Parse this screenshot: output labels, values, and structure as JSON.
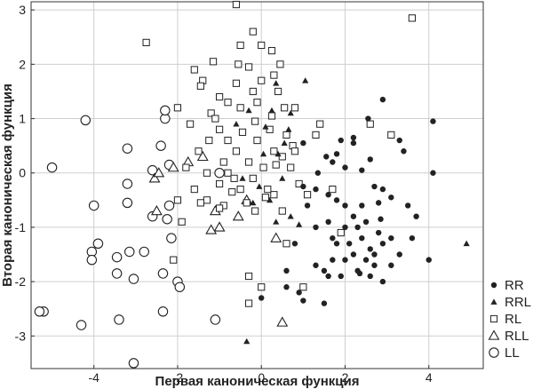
{
  "chart_data": {
    "type": "scatter",
    "xlabel": "Первая каноническая функция",
    "ylabel": "Вторая каноническая функция",
    "xlim": [
      -5.5,
      5.3
    ],
    "ylim": [
      -3.6,
      3.15
    ],
    "xticks": [
      -4,
      -2,
      0,
      2,
      4
    ],
    "yticks": [
      -3,
      -2,
      -1,
      0,
      1,
      2,
      3
    ],
    "grid": true,
    "legend_position": "bottom-right",
    "series": [
      {
        "name": "RR",
        "marker": "filled-circle",
        "points": [
          [
            4.1,
            0.95
          ],
          [
            3.3,
            0.6
          ],
          [
            2.2,
            0.65
          ],
          [
            2.6,
            0.25
          ],
          [
            2.55,
            1.0
          ],
          [
            3.4,
            0.4
          ],
          [
            2.9,
            1.35
          ],
          [
            4.1,
            0.0
          ],
          [
            2.2,
            0.55
          ],
          [
            1.0,
            0.55
          ],
          [
            1.9,
            0.6
          ],
          [
            1.8,
            0.35
          ],
          [
            1.7,
            0.2
          ],
          [
            2.0,
            0.1
          ],
          [
            2.4,
            0.05
          ],
          [
            2.9,
            -0.3
          ],
          [
            3.1,
            -0.45
          ],
          [
            3.5,
            -0.6
          ],
          [
            1.3,
            -0.3
          ],
          [
            1.6,
            -0.4
          ],
          [
            1.8,
            -0.5
          ],
          [
            2.0,
            -0.6
          ],
          [
            2.2,
            -0.8
          ],
          [
            2.5,
            -0.9
          ],
          [
            2.8,
            -0.55
          ],
          [
            2.3,
            -1.0
          ],
          [
            2.0,
            -1.0
          ],
          [
            1.6,
            -0.9
          ],
          [
            1.7,
            -1.2
          ],
          [
            1.3,
            -1.0
          ],
          [
            1.8,
            -1.3
          ],
          [
            2.1,
            -1.3
          ],
          [
            2.4,
            -1.2
          ],
          [
            2.6,
            -1.4
          ],
          [
            2.9,
            -1.3
          ],
          [
            3.1,
            -1.2
          ],
          [
            2.8,
            -1.1
          ],
          [
            3.3,
            -1.5
          ],
          [
            3.1,
            -1.7
          ],
          [
            2.7,
            -1.7
          ],
          [
            2.5,
            -1.6
          ],
          [
            2.2,
            -1.5
          ],
          [
            2.0,
            -1.6
          ],
          [
            1.7,
            -1.6
          ],
          [
            1.5,
            -1.8
          ],
          [
            1.6,
            -1.9
          ],
          [
            1.9,
            -1.9
          ],
          [
            2.3,
            -1.8
          ],
          [
            2.6,
            -1.9
          ],
          [
            2.9,
            -2.0
          ],
          [
            3.6,
            -1.2
          ],
          [
            3.7,
            -0.8
          ],
          [
            4.0,
            -1.6
          ],
          [
            2.4,
            -0.6
          ],
          [
            2.7,
            -0.25
          ],
          [
            1.1,
            -0.6
          ],
          [
            0.8,
            -1.3
          ],
          [
            0.6,
            -1.8
          ],
          [
            1.3,
            -1.7
          ],
          [
            0.9,
            -2.2
          ],
          [
            0.6,
            -2.1
          ],
          [
            0.0,
            -2.3
          ],
          [
            1.0,
            -2.35
          ],
          [
            1.5,
            -2.4
          ],
          [
            2.7,
            -1.5
          ],
          [
            1.35,
            0.0
          ],
          [
            1.55,
            0.3
          ],
          [
            2.35,
            -1.85
          ],
          [
            1.0,
            -0.25
          ],
          [
            2.85,
            -0.85
          ]
        ]
      },
      {
        "name": "RRL",
        "marker": "filled-triangle",
        "points": [
          [
            1.05,
            1.7
          ],
          [
            4.9,
            -1.3
          ],
          [
            -0.35,
            -3.1
          ],
          [
            0.5,
            -0.1
          ],
          [
            0.1,
            0.85
          ],
          [
            0.4,
            0.35
          ],
          [
            -0.2,
            -0.55
          ],
          [
            0.7,
            -0.8
          ],
          [
            -0.3,
            1.15
          ],
          [
            0.2,
            -0.5
          ],
          [
            -0.6,
            0.9
          ],
          [
            0.05,
            0.35
          ],
          [
            0.9,
            -0.95
          ],
          [
            0.55,
            0.55
          ],
          [
            0.35,
            -0.9
          ],
          [
            0.35,
            1.65
          ],
          [
            -0.05,
            -0.25
          ],
          [
            0.65,
            0.8
          ],
          [
            -0.45,
            -0.1
          ],
          [
            0.25,
            1.15
          ],
          [
            0.7,
            1.1
          ]
        ]
      },
      {
        "name": "RL",
        "marker": "open-square",
        "points": [
          [
            -0.6,
            3.1
          ],
          [
            3.6,
            2.85
          ],
          [
            -2.75,
            2.4
          ],
          [
            -0.2,
            2.6
          ],
          [
            0.0,
            2.35
          ],
          [
            -0.5,
            2.35
          ],
          [
            -1.6,
            1.9
          ],
          [
            -0.3,
            1.95
          ],
          [
            0.3,
            1.8
          ],
          [
            -1.4,
            1.7
          ],
          [
            -1.45,
            1.6
          ],
          [
            -1.0,
            1.4
          ],
          [
            -0.5,
            1.2
          ],
          [
            -2.0,
            1.2
          ],
          [
            -1.7,
            0.9
          ],
          [
            0.0,
            1.7
          ],
          [
            -0.2,
            1.5
          ],
          [
            0.4,
            1.5
          ],
          [
            0.8,
            1.2
          ],
          [
            -1.2,
            1.1
          ],
          [
            -1.0,
            0.8
          ],
          [
            -0.8,
            0.6
          ],
          [
            -0.6,
            0.4
          ],
          [
            -0.3,
            0.2
          ],
          [
            -0.1,
            0.6
          ],
          [
            0.2,
            0.8
          ],
          [
            0.5,
            0.3
          ],
          [
            0.7,
            0.1
          ],
          [
            0.9,
            -0.2
          ],
          [
            -1.5,
            0.4
          ],
          [
            -1.8,
            0.1
          ],
          [
            -2.0,
            -0.5
          ],
          [
            -1.6,
            -0.3
          ],
          [
            -1.3,
            -0.5
          ],
          [
            -1.0,
            -0.2
          ],
          [
            -0.8,
            0.0
          ],
          [
            -0.5,
            -0.3
          ],
          [
            -0.2,
            -0.1
          ],
          [
            0.3,
            -0.4
          ],
          [
            0.5,
            -0.7
          ],
          [
            1.3,
            0.7
          ],
          [
            1.7,
            -0.3
          ],
          [
            1.9,
            -1.1
          ],
          [
            -1.9,
            -0.9
          ],
          [
            -2.1,
            -1.6
          ],
          [
            -0.3,
            -1.9
          ],
          [
            0.0,
            -2.1
          ],
          [
            1.0,
            -2.1
          ],
          [
            -0.3,
            -2.4
          ],
          [
            0.6,
            -1.3
          ],
          [
            2.6,
            0.9
          ],
          [
            3.1,
            0.7
          ],
          [
            1.4,
            0.9
          ],
          [
            -0.9,
            -0.6
          ],
          [
            -1.3,
            0.0
          ],
          [
            0.25,
            1.05
          ],
          [
            -0.15,
            0.95
          ],
          [
            -0.6,
            1.65
          ],
          [
            0.6,
            0.7
          ],
          [
            -1.1,
            1.0
          ],
          [
            -0.9,
            0.2
          ],
          [
            -0.45,
            0.75
          ],
          [
            0.05,
            0.1
          ],
          [
            0.3,
            0.4
          ],
          [
            -0.7,
            -0.35
          ],
          [
            -0.35,
            -0.55
          ],
          [
            0.1,
            -0.45
          ],
          [
            -1.25,
            0.6
          ],
          [
            -1.45,
            -0.55
          ],
          [
            0.75,
            0.5
          ],
          [
            1.1,
            -0.4
          ],
          [
            -0.1,
            1.3
          ],
          [
            -0.55,
            2.0
          ],
          [
            0.45,
            2.0
          ],
          [
            -1.15,
            2.05
          ],
          [
            0.25,
            2.25
          ],
          [
            -0.8,
            1.3
          ],
          [
            0.15,
            -0.3
          ],
          [
            -0.65,
            -0.1
          ],
          [
            0.8,
            0.4
          ],
          [
            -1.0,
            -0.65
          ],
          [
            0.35,
            0.15
          ],
          [
            -0.15,
            -0.7
          ],
          [
            0.55,
            1.2
          ]
        ]
      },
      {
        "name": "RLL",
        "marker": "open-triangle",
        "points": [
          [
            -2.55,
            -0.1
          ],
          [
            -2.5,
            -0.7
          ],
          [
            -2.1,
            0.1
          ],
          [
            -1.4,
            0.3
          ],
          [
            -1.1,
            -0.7
          ],
          [
            -1.0,
            -1.0
          ],
          [
            -0.55,
            -0.8
          ],
          [
            -1.75,
            0.2
          ],
          [
            -1.2,
            -1.05
          ],
          [
            -0.35,
            -0.5
          ],
          [
            0.35,
            -1.2
          ],
          [
            0.5,
            -2.75
          ],
          [
            -2.45,
            0.0
          ]
        ]
      },
      {
        "name": "LL",
        "marker": "open-circle",
        "points": [
          [
            -5.0,
            0.1
          ],
          [
            -4.2,
            0.97
          ],
          [
            -2.3,
            1.0
          ],
          [
            -3.2,
            0.45
          ],
          [
            -2.4,
            0.5
          ],
          [
            -2.6,
            0.05
          ],
          [
            -2.2,
            0.15
          ],
          [
            -2.2,
            -0.6
          ],
          [
            -3.2,
            -0.55
          ],
          [
            -4.0,
            -0.6
          ],
          [
            -3.2,
            -0.2
          ],
          [
            -2.6,
            -0.8
          ],
          [
            -2.25,
            -0.85
          ],
          [
            -2.15,
            -1.2
          ],
          [
            -3.9,
            -1.3
          ],
          [
            -4.05,
            -1.45
          ],
          [
            -3.15,
            -1.45
          ],
          [
            -2.8,
            -1.45
          ],
          [
            -4.05,
            -1.6
          ],
          [
            -3.45,
            -1.55
          ],
          [
            -3.45,
            -1.85
          ],
          [
            -2.35,
            -1.85
          ],
          [
            -3.05,
            -1.95
          ],
          [
            -2.0,
            -2.0
          ],
          [
            -1.95,
            -2.1
          ],
          [
            -2.35,
            -2.55
          ],
          [
            -5.2,
            -2.55
          ],
          [
            -5.3,
            -2.55
          ],
          [
            -4.3,
            -2.8
          ],
          [
            -3.4,
            -2.7
          ],
          [
            -1.1,
            -2.7
          ],
          [
            -3.05,
            -3.5
          ],
          [
            -1.0,
            0.0
          ],
          [
            -2.3,
            1.15
          ]
        ]
      }
    ]
  }
}
